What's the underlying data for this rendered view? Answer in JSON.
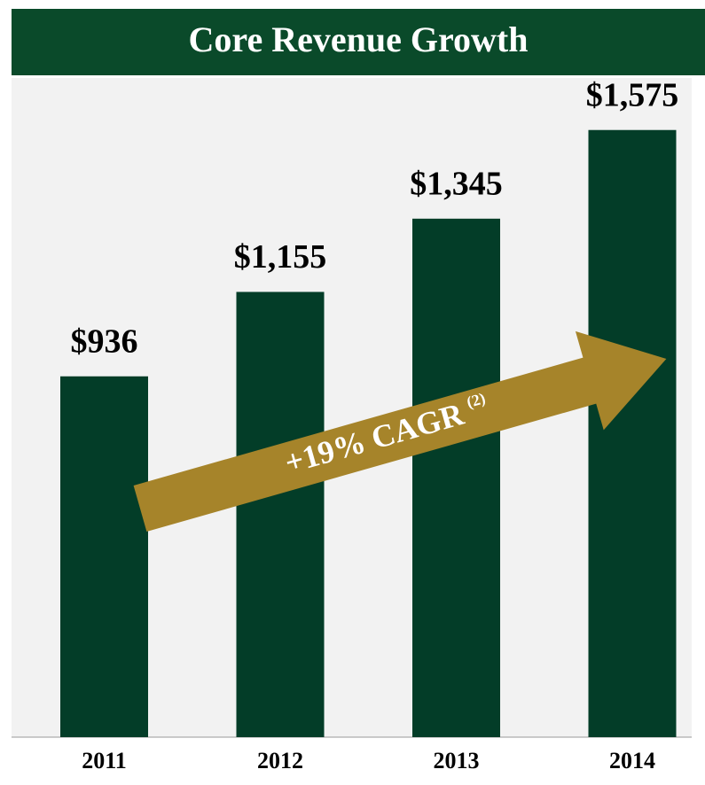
{
  "chart_data": {
    "type": "bar",
    "title": "Core Revenue Growth",
    "categories": [
      "2011",
      "2012",
      "2013",
      "2014"
    ],
    "values": [
      936,
      1155,
      1345,
      1575
    ],
    "value_labels": [
      "$936",
      "$1,155",
      "$1,345",
      "$1,575"
    ],
    "color": "#033d28",
    "ylim": [
      0,
      1710
    ],
    "annotation": "+19% CAGR",
    "annotation_note": "(2)",
    "annotation_color": "#a6842a"
  }
}
